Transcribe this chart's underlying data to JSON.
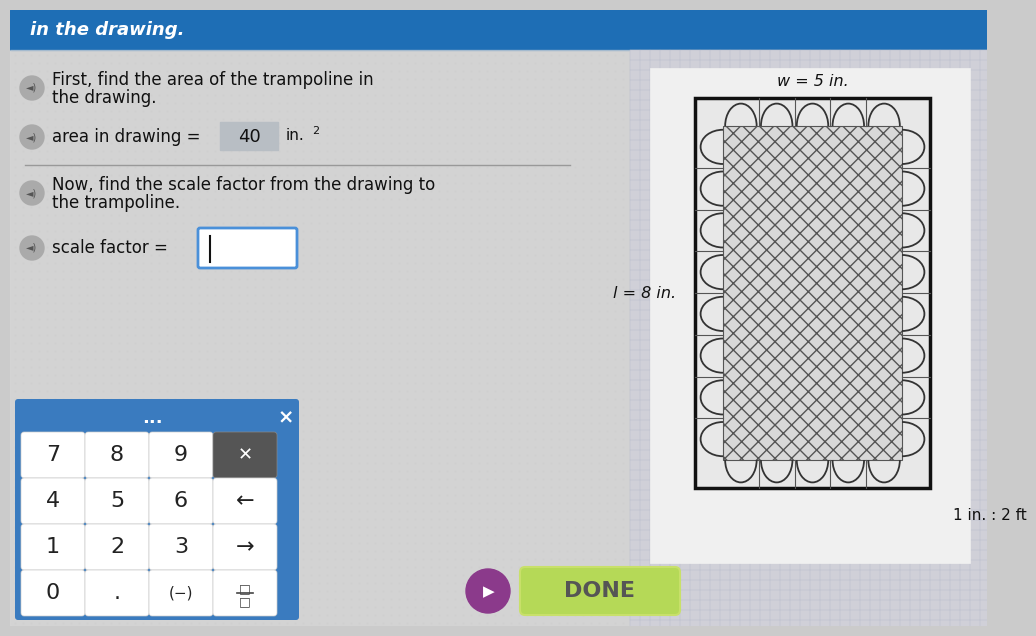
{
  "bg_color": "#cbcbcb",
  "top_bar_color": "#1e6eb5",
  "top_bar_text": "in the drawing.",
  "top_bar_text_color": "#ffffff",
  "left_panel_bg": "#d6d6d6",
  "right_panel_bg": "#c8c8c8",
  "section1_line1": "First, find the area of the trampoline in",
  "section1_line2": "the drawing.",
  "area_label": "area in drawing =",
  "area_value": "40",
  "area_unit_base": "in.",
  "area_unit_exp": "2",
  "area_box_color": "#b8bec4",
  "separator_color": "#999999",
  "section2_line1": "Now, find the scale factor from the drawing to",
  "section2_line2": "the trampoline.",
  "scale_label": "scale factor =",
  "scale_box_color": "#ffffff",
  "scale_box_border": "#4a90d9",
  "done_button_color": "#b5d957",
  "done_text": "DONE",
  "done_text_color": "#555555",
  "done_border_color": "#c8e06a",
  "play_button_color": "#8b3a8b",
  "keypad_bg": "#3a7bbf",
  "keypad_key_bg": "#ffffff",
  "keypad_key_color": "#222222",
  "trampoline_label_w": "w = 5 in.",
  "trampoline_label_l": "l = 8 in.",
  "trampoline_scale": "1 in. : 2 ft",
  "grid_color": "#b0b8c8",
  "white_card_color": "#f0f0f0"
}
